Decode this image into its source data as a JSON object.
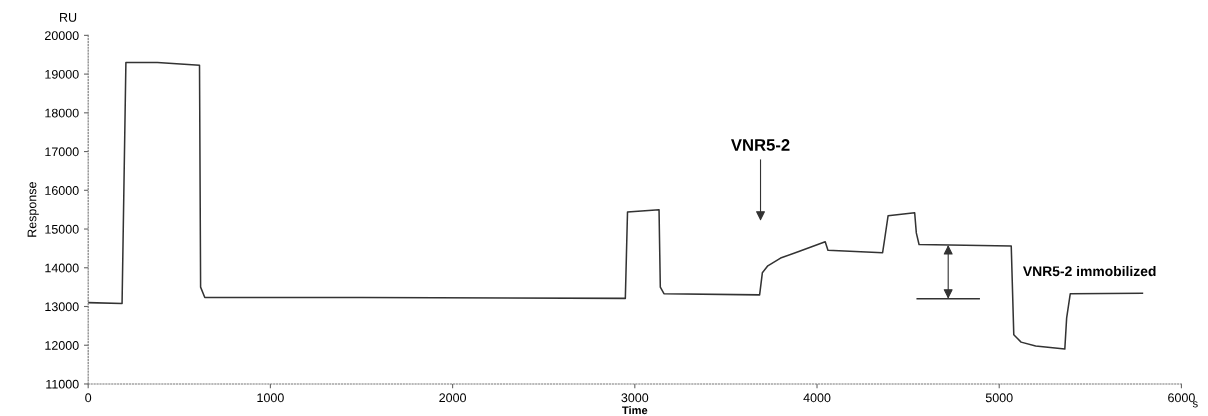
{
  "chart_data": {
    "type": "line",
    "xlabel": "Time",
    "ylabel": "Response",
    "x": [
      0,
      186,
      207,
      380,
      611,
      617,
      640,
      1500,
      2948,
      2960,
      3133,
      3140,
      3160,
      3685,
      3700,
      3730,
      3800,
      3900,
      4045,
      4060,
      4360,
      4370,
      4390,
      4536,
      4545,
      4560,
      5066,
      5080,
      5120,
      5200,
      5360,
      5370,
      5390,
      5786
    ],
    "series": [
      {
        "color": "#333333",
        "values": [
          13100,
          13080,
          19300,
          19300,
          19230,
          13500,
          13230,
          13230,
          13210,
          15440,
          15500,
          13500,
          13330,
          13300,
          13870,
          14050,
          14250,
          14420,
          14670,
          14450,
          14390,
          14700,
          15340,
          15420,
          14900,
          14600,
          14560,
          12270,
          12080,
          11980,
          11900,
          12700,
          13330,
          13340
        ]
      },
      {
        "color": "#333333",
        "x": [
          4550,
          4890
        ],
        "values": [
          13200,
          13200
        ]
      }
    ],
    "xlim": [
      0,
      6000
    ],
    "xticks": [
      0,
      1000,
      2000,
      3000,
      4000,
      5000,
      6000
    ],
    "ylim": [
      11000,
      20000
    ],
    "yticks": [
      11000,
      12000,
      13000,
      14000,
      15000,
      16000,
      17000,
      18000,
      19000,
      20000
    ],
    "grid": false,
    "marker": "none",
    "line_style": "solid",
    "annotations": [
      "RU",
      "s",
      "VNR5-2",
      "VNR5-2 immobilized"
    ]
  }
}
